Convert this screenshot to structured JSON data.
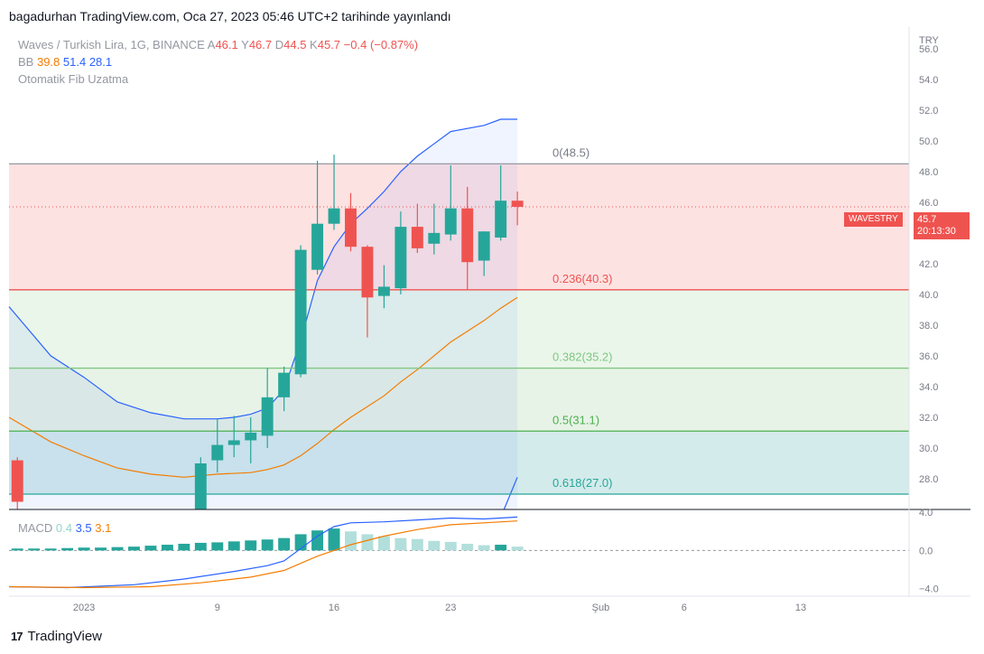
{
  "header": {
    "text": "bagadurhan TradingView.com, Oca 27, 2023 05:46 UTC+2 tarihinde yayınlandı"
  },
  "legend": {
    "title": "Waves / Turkish Lira, 1G, BINANCE",
    "ohlc": [
      {
        "k": "A",
        "v": "46.1"
      },
      {
        "k": "Y",
        "v": "46.7"
      },
      {
        "k": "D",
        "v": "44.5"
      },
      {
        "k": "K",
        "v": "45.7"
      }
    ],
    "change": "−0.4 (−0.87%)",
    "bb_label": "BB",
    "bb_values": [
      {
        "v": "39.8",
        "color": "#f57c00"
      },
      {
        "v": "51.4",
        "color": "#2962ff"
      },
      {
        "v": "28.1",
        "color": "#2962ff"
      }
    ],
    "fib_label": "Otomatik Fib Uzatma",
    "macd_label": "MACD",
    "macd_values": [
      {
        "v": "0.4",
        "color": "#93d4cc"
      },
      {
        "v": "3.5",
        "color": "#2962ff"
      },
      {
        "v": "3.1",
        "color": "#f57c00"
      }
    ]
  },
  "price_tag": {
    "symbol": "WAVESTRY",
    "price": "45.7",
    "countdown": "20:13:30"
  },
  "footer": {
    "logo": "17",
    "brand": "TradingView"
  },
  "colors": {
    "up": "#26a69a",
    "down": "#ef5350",
    "basis": "#f57c00",
    "band": "#2962ff",
    "macd": "#2962ff",
    "signal": "#f57c00"
  },
  "chart_data": {
    "type": "candlestick",
    "currency": "TRY",
    "price_axis": {
      "ylim": [
        26.0,
        57.4
      ],
      "ticks": [
        "56.0",
        "54.0",
        "52.0",
        "50.0",
        "48.0",
        "46.0",
        "44.0",
        "42.0",
        "40.0",
        "38.0",
        "36.0",
        "34.0",
        "32.0",
        "30.0",
        "28.0"
      ]
    },
    "x_ticks": [
      {
        "label": "2023",
        "day": 1
      },
      {
        "label": "9",
        "day": 9
      },
      {
        "label": "16",
        "day": 16
      },
      {
        "label": "23",
        "day": 23
      },
      {
        "label": "Şub",
        "day": 32
      },
      {
        "label": "6",
        "day": 37
      },
      {
        "label": "13",
        "day": 44
      }
    ],
    "xlim": [
      -3.5,
      50.5
    ],
    "candles": [
      {
        "day": -3,
        "o": 29.2,
        "h": 29.4,
        "l": 25.0,
        "c": 26.5
      },
      {
        "day": 8,
        "o": 26.0,
        "h": 29.4,
        "l": 25.8,
        "c": 29.0
      },
      {
        "day": 9,
        "o": 29.2,
        "h": 31.9,
        "l": 28.4,
        "c": 30.2
      },
      {
        "day": 10,
        "o": 30.2,
        "h": 32.1,
        "l": 29.4,
        "c": 30.5
      },
      {
        "day": 11,
        "o": 30.5,
        "h": 32.0,
        "l": 29.0,
        "c": 31.0
      },
      {
        "day": 12,
        "o": 30.8,
        "h": 35.2,
        "l": 30.0,
        "c": 33.3
      },
      {
        "day": 13,
        "o": 33.3,
        "h": 35.3,
        "l": 32.4,
        "c": 34.9
      },
      {
        "day": 14,
        "o": 34.8,
        "h": 43.2,
        "l": 34.6,
        "c": 42.9
      },
      {
        "day": 15,
        "o": 41.6,
        "h": 48.7,
        "l": 41.3,
        "c": 44.6
      },
      {
        "day": 16,
        "o": 44.6,
        "h": 49.1,
        "l": 44.2,
        "c": 45.6
      },
      {
        "day": 17,
        "o": 45.6,
        "h": 46.6,
        "l": 42.8,
        "c": 43.1
      },
      {
        "day": 18,
        "o": 43.1,
        "h": 43.2,
        "l": 37.2,
        "c": 39.8
      },
      {
        "day": 19,
        "o": 39.9,
        "h": 41.9,
        "l": 39.1,
        "c": 40.5
      },
      {
        "day": 20,
        "o": 40.4,
        "h": 45.4,
        "l": 40.0,
        "c": 44.4
      },
      {
        "day": 21,
        "o": 44.4,
        "h": 45.9,
        "l": 42.7,
        "c": 43.0
      },
      {
        "day": 22,
        "o": 43.3,
        "h": 45.9,
        "l": 42.6,
        "c": 44.0
      },
      {
        "day": 23,
        "o": 43.9,
        "h": 48.4,
        "l": 43.5,
        "c": 45.6
      },
      {
        "day": 24,
        "o": 45.6,
        "h": 47.0,
        "l": 40.3,
        "c": 42.1
      },
      {
        "day": 25,
        "o": 42.2,
        "h": 44.1,
        "l": 41.2,
        "c": 44.1
      },
      {
        "day": 26,
        "o": 43.7,
        "h": 48.4,
        "l": 43.5,
        "c": 46.1
      },
      {
        "day": 27,
        "o": 46.1,
        "h": 46.7,
        "l": 44.5,
        "c": 45.7
      }
    ],
    "bb_upper": [
      {
        "day": -3.5,
        "v": 39.2
      },
      {
        "day": -1,
        "v": 36.0
      },
      {
        "day": 1,
        "v": 34.6
      },
      {
        "day": 3,
        "v": 33.0
      },
      {
        "day": 5,
        "v": 32.3
      },
      {
        "day": 7,
        "v": 31.9
      },
      {
        "day": 9,
        "v": 31.9
      },
      {
        "day": 10,
        "v": 32.0
      },
      {
        "day": 11,
        "v": 32.2
      },
      {
        "day": 12,
        "v": 32.6
      },
      {
        "day": 13,
        "v": 33.8
      },
      {
        "day": 14,
        "v": 37.0
      },
      {
        "day": 15,
        "v": 40.9
      },
      {
        "day": 16,
        "v": 43.1
      },
      {
        "day": 17,
        "v": 44.6
      },
      {
        "day": 18,
        "v": 45.6
      },
      {
        "day": 19,
        "v": 46.7
      },
      {
        "day": 20,
        "v": 48.0
      },
      {
        "day": 21,
        "v": 49.0
      },
      {
        "day": 22,
        "v": 49.8
      },
      {
        "day": 23,
        "v": 50.6
      },
      {
        "day": 25,
        "v": 51.0
      },
      {
        "day": 26,
        "v": 51.4
      },
      {
        "day": 27,
        "v": 51.4
      }
    ],
    "bb_basis": [
      {
        "day": -3.5,
        "v": 32.0
      },
      {
        "day": -1,
        "v": 30.4
      },
      {
        "day": 1,
        "v": 29.5
      },
      {
        "day": 3,
        "v": 28.7
      },
      {
        "day": 5,
        "v": 28.3
      },
      {
        "day": 7,
        "v": 28.1
      },
      {
        "day": 9,
        "v": 28.3
      },
      {
        "day": 11,
        "v": 28.4
      },
      {
        "day": 12,
        "v": 28.6
      },
      {
        "day": 13,
        "v": 28.9
      },
      {
        "day": 14,
        "v": 29.5
      },
      {
        "day": 15,
        "v": 30.3
      },
      {
        "day": 16,
        "v": 31.2
      },
      {
        "day": 17,
        "v": 32.0
      },
      {
        "day": 18,
        "v": 32.7
      },
      {
        "day": 19,
        "v": 33.4
      },
      {
        "day": 20,
        "v": 34.3
      },
      {
        "day": 21,
        "v": 35.1
      },
      {
        "day": 22,
        "v": 36.0
      },
      {
        "day": 23,
        "v": 36.9
      },
      {
        "day": 24,
        "v": 37.6
      },
      {
        "day": 25,
        "v": 38.3
      },
      {
        "day": 26,
        "v": 39.1
      },
      {
        "day": 27,
        "v": 39.8
      }
    ],
    "bb_lower": [
      {
        "day": 26.2,
        "v": 26.0
      },
      {
        "day": 27,
        "v": 28.1
      }
    ],
    "fib_levels": [
      {
        "label": "0(48.5)",
        "price": 48.5,
        "line": "#9598a1",
        "text": "#787b86",
        "fill": "#fde2e2"
      },
      {
        "label": "0.236(40.3)",
        "price": 40.3,
        "line": "#ef5350",
        "text": "#ef5350",
        "fill": "#eaf6ea"
      },
      {
        "label": "0.382(35.2)",
        "price": 35.2,
        "line": "#81c784",
        "text": "#81c784",
        "fill": "#e7f3e6"
      },
      {
        "label": "0.5(31.1)",
        "price": 31.1,
        "line": "#4caf50",
        "text": "#4caf50",
        "fill": "#d4ebeb"
      },
      {
        "label": "0.618(27.0)",
        "price": 27.0,
        "line": "#26a69a",
        "text": "#26a69a",
        "fill": null
      }
    ],
    "last_price": 45.7,
    "macd_axis": {
      "ylim": [
        -4.8,
        4.3
      ],
      "ticks": [
        "4.0",
        "0.0",
        "−4.0"
      ]
    },
    "macd_hist": [
      {
        "day": -3,
        "v": 0.2
      },
      {
        "day": -2,
        "v": 0.2
      },
      {
        "day": -1,
        "v": 0.2
      },
      {
        "day": 0,
        "v": 0.25
      },
      {
        "day": 1,
        "v": 0.3
      },
      {
        "day": 2,
        "v": 0.3
      },
      {
        "day": 3,
        "v": 0.35
      },
      {
        "day": 4,
        "v": 0.4
      },
      {
        "day": 5,
        "v": 0.5
      },
      {
        "day": 6,
        "v": 0.6
      },
      {
        "day": 7,
        "v": 0.7
      },
      {
        "day": 8,
        "v": 0.8
      },
      {
        "day": 9,
        "v": 0.85
      },
      {
        "day": 10,
        "v": 0.95
      },
      {
        "day": 11,
        "v": 1.05
      },
      {
        "day": 12,
        "v": 1.15
      },
      {
        "day": 13,
        "v": 1.3
      },
      {
        "day": 14,
        "v": 1.7
      },
      {
        "day": 15,
        "v": 2.1
      },
      {
        "day": 16,
        "v": 2.3
      },
      {
        "day": 17,
        "v": 2.0
      },
      {
        "day": 18,
        "v": 1.7
      },
      {
        "day": 19,
        "v": 1.5
      },
      {
        "day": 20,
        "v": 1.3
      },
      {
        "day": 21,
        "v": 1.2
      },
      {
        "day": 22,
        "v": 1.0
      },
      {
        "day": 23,
        "v": 0.9
      },
      {
        "day": 24,
        "v": 0.7
      },
      {
        "day": 25,
        "v": 0.55
      },
      {
        "day": 26,
        "v": 0.6
      },
      {
        "day": 27,
        "v": 0.4
      }
    ],
    "macd_line": [
      {
        "day": -3.5,
        "v": -3.8
      },
      {
        "day": 0,
        "v": -3.9
      },
      {
        "day": 4,
        "v": -3.6
      },
      {
        "day": 7,
        "v": -3.0
      },
      {
        "day": 10,
        "v": -2.2
      },
      {
        "day": 12,
        "v": -1.6
      },
      {
        "day": 13,
        "v": -1.1
      },
      {
        "day": 14,
        "v": 0.2
      },
      {
        "day": 15,
        "v": 1.5
      },
      {
        "day": 16,
        "v": 2.5
      },
      {
        "day": 17,
        "v": 2.9
      },
      {
        "day": 19,
        "v": 3.0
      },
      {
        "day": 21,
        "v": 3.2
      },
      {
        "day": 23,
        "v": 3.4
      },
      {
        "day": 25,
        "v": 3.3
      },
      {
        "day": 27,
        "v": 3.5
      }
    ],
    "signal_line": [
      {
        "day": -3.5,
        "v": -3.8
      },
      {
        "day": 1,
        "v": -3.9
      },
      {
        "day": 5,
        "v": -3.8
      },
      {
        "day": 8,
        "v": -3.4
      },
      {
        "day": 11,
        "v": -2.8
      },
      {
        "day": 13,
        "v": -2.1
      },
      {
        "day": 15,
        "v": -0.6
      },
      {
        "day": 17,
        "v": 0.6
      },
      {
        "day": 19,
        "v": 1.5
      },
      {
        "day": 21,
        "v": 2.2
      },
      {
        "day": 23,
        "v": 2.7
      },
      {
        "day": 25,
        "v": 2.9
      },
      {
        "day": 27,
        "v": 3.1
      }
    ]
  }
}
